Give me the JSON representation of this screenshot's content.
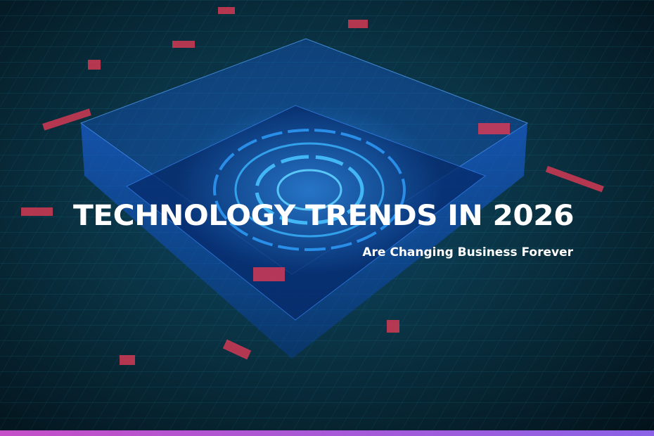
{
  "banner": {
    "title": "TECHNOLOGY TRENDS IN 2026",
    "subtitle": "Are Changing Business Forever"
  }
}
